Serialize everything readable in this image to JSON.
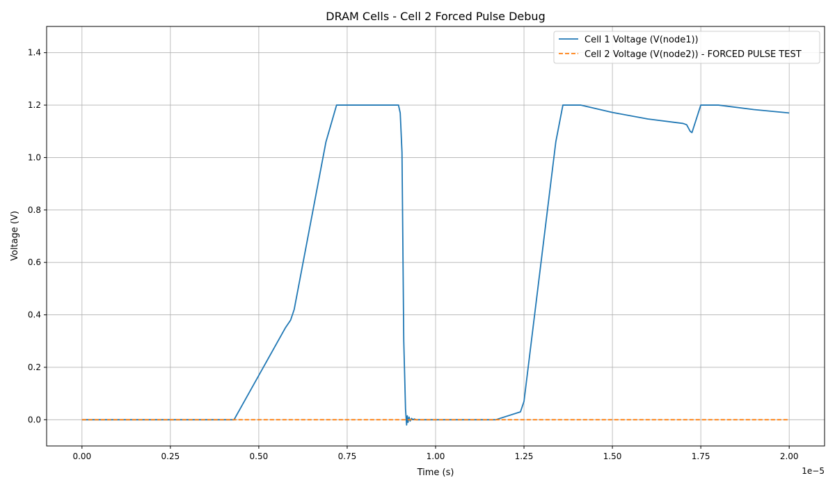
{
  "chart_data": {
    "type": "line",
    "title": "DRAM Cells - Cell 2 Forced Pulse Debug",
    "xlabel": "Time (s)",
    "ylabel": "Voltage (V)",
    "x_offset_label": "1e−5",
    "xlim": [
      -0.1,
      2.1
    ],
    "ylim": [
      -0.1,
      1.5
    ],
    "x_ticks": [
      0.0,
      0.25,
      0.5,
      0.75,
      1.0,
      1.25,
      1.5,
      1.75,
      2.0
    ],
    "x_tick_labels": [
      "0.00",
      "0.25",
      "0.50",
      "0.75",
      "1.00",
      "1.25",
      "1.50",
      "1.75",
      "2.00"
    ],
    "y_ticks": [
      0.0,
      0.2,
      0.4,
      0.6,
      0.8,
      1.0,
      1.2,
      1.4
    ],
    "y_tick_labels": [
      "0.0",
      "0.2",
      "0.4",
      "0.6",
      "0.8",
      "1.0",
      "1.2",
      "1.4"
    ],
    "grid": true,
    "legend_position": "top-right",
    "series": [
      {
        "name": "Cell 1 Voltage (V(node1))",
        "color": "#1f77b4",
        "style": "solid",
        "x": [
          0.0,
          0.43,
          0.575,
          0.59,
          0.6,
          0.69,
          0.72,
          0.895,
          0.9,
          0.905,
          0.91,
          0.915,
          0.918,
          0.92,
          0.922,
          0.925,
          0.928,
          0.932,
          0.936,
          0.94,
          0.945,
          0.95,
          1.0,
          1.17,
          1.24,
          1.25,
          1.34,
          1.36,
          1.41,
          1.5,
          1.6,
          1.7,
          1.71,
          1.72,
          1.725,
          1.75,
          1.8,
          1.9,
          2.0
        ],
        "y": [
          0.0,
          0.0,
          0.35,
          0.38,
          0.42,
          1.06,
          1.2,
          1.2,
          1.17,
          1.02,
          0.3,
          0.04,
          -0.02,
          0.015,
          -0.01,
          0.01,
          -0.005,
          0.005,
          0.0,
          0.003,
          0.0,
          0.0,
          0.0,
          0.0,
          0.03,
          0.07,
          1.06,
          1.2,
          1.2,
          1.172,
          1.147,
          1.13,
          1.125,
          1.1,
          1.095,
          1.2,
          1.2,
          1.183,
          1.17
        ]
      },
      {
        "name": "Cell 2 Voltage (V(node2)) - FORCED PULSE TEST",
        "color": "#ff7f0e",
        "style": "dashed",
        "x": [
          0.0,
          0.5,
          1.0,
          1.5,
          2.0
        ],
        "y": [
          0.0,
          0.0,
          0.0,
          0.0,
          0.0
        ]
      }
    ]
  }
}
